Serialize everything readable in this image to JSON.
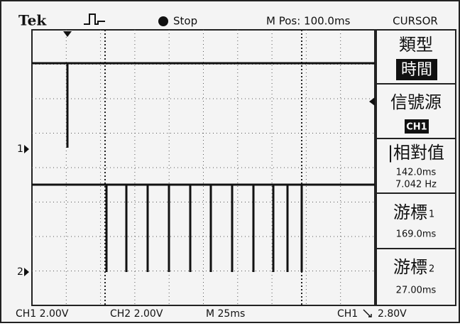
{
  "header": {
    "brand": "Tek",
    "status": "Stop",
    "position": "M Pos: 100.0ms",
    "menu_title": "CURSOR"
  },
  "menu": [
    {
      "label": "類型",
      "value": "時間"
    },
    {
      "label": "信號源",
      "value": "CH1"
    },
    {
      "label": "|相對值",
      "lines": [
        "142.0ms",
        "7.042 Hz"
      ]
    },
    {
      "label": "游標",
      "index": "1",
      "value": "169.0ms"
    },
    {
      "label": "游標",
      "index": "2",
      "value": "27.00ms"
    }
  ],
  "markers": {
    "ch1": "1",
    "ch2": "2"
  },
  "footer": {
    "ch1": "CH1 2.00V",
    "ch2": "CH2 2.00V",
    "timebase": "M 25ms",
    "trigger_source": "CH1",
    "trigger_level": "2.80V"
  }
}
